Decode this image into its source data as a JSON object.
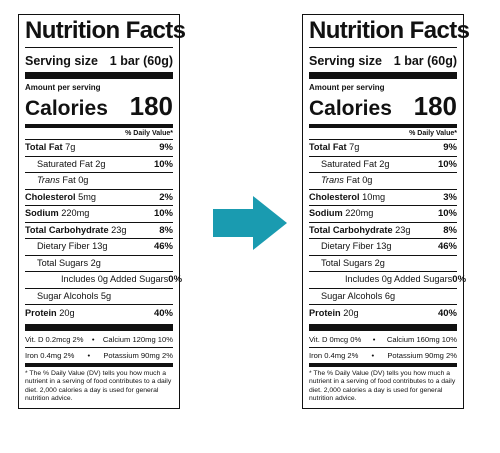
{
  "arrow_color": "#1a9bb0",
  "labels": [
    {
      "title": "Nutrition Facts",
      "serving_label": "Serving size",
      "serving_value": "1 bar (60g)",
      "amount_per_serving": "Amount per serving",
      "calories_label": "Calories",
      "calories_value": "180",
      "dv_header": "% Daily Value*",
      "total_fat": {
        "label": "Total Fat",
        "amount": "7g",
        "dv": "9%"
      },
      "saturated_fat": {
        "label": "Saturated Fat 2g",
        "dv": "10%"
      },
      "trans_fat": {
        "prefix": "Trans",
        "label": " Fat 0g"
      },
      "cholesterol": {
        "label": "Cholesterol",
        "amount": "5mg",
        "dv": "2%"
      },
      "sodium": {
        "label": "Sodium",
        "amount": "220mg",
        "dv": "10%"
      },
      "total_carb": {
        "label": "Total Carbohydrate",
        "amount": "23g",
        "dv": "8%"
      },
      "dietary_fiber": {
        "label": "Dietary Fiber 13g",
        "dv": "46%"
      },
      "total_sugars": {
        "label": "Total Sugars 2g"
      },
      "added_sugars": {
        "label": "Includes 0g Added Sugars",
        "dv": "0%"
      },
      "sugar_alcohols": {
        "label": "Sugar Alcohols 5g"
      },
      "protein": {
        "label": "Protein",
        "amount": "20g",
        "dv": "40%"
      },
      "vit_d": "Vit. D 0.2mcg 2%",
      "calcium": "Calcium 120mg 10%",
      "iron": "Iron 0.4mg 2%",
      "potassium": "Potassium 90mg 2%",
      "bullet": "•",
      "footnote": "* The % Daily Value (DV) tells you how much a nutrient in a serving of food contributes to a daily diet. 2,000 calories a day is used for general nutrition advice."
    },
    {
      "title": "Nutrition Facts",
      "serving_label": "Serving size",
      "serving_value": "1 bar (60g)",
      "amount_per_serving": "Amount per serving",
      "calories_label": "Calories",
      "calories_value": "180",
      "dv_header": "% Daily Value*",
      "total_fat": {
        "label": "Total Fat",
        "amount": "7g",
        "dv": "9%"
      },
      "saturated_fat": {
        "label": "Saturated Fat 2g",
        "dv": "10%"
      },
      "trans_fat": {
        "prefix": "Trans",
        "label": " Fat 0g"
      },
      "cholesterol": {
        "label": "Cholesterol",
        "amount": "10mg",
        "dv": "3%"
      },
      "sodium": {
        "label": "Sodium",
        "amount": "220mg",
        "dv": "10%"
      },
      "total_carb": {
        "label": "Total Carbohydrate",
        "amount": "23g",
        "dv": "8%"
      },
      "dietary_fiber": {
        "label": "Dietary Fiber 13g",
        "dv": "46%"
      },
      "total_sugars": {
        "label": "Total Sugars 2g"
      },
      "added_sugars": {
        "label": "Includes 0g Added Sugars",
        "dv": "0%"
      },
      "sugar_alcohols": {
        "label": "Sugar Alcohols 6g"
      },
      "protein": {
        "label": "Protein",
        "amount": "20g",
        "dv": "40%"
      },
      "vit_d": "Vit. D 0mcg 0%",
      "calcium": "Calcium 160mg 10%",
      "iron": "Iron 0.4mg 2%",
      "potassium": "Potassium 90mg 2%",
      "bullet": "•",
      "footnote": "* The % Daily Value (DV) tells you how much a nutrient in a serving of food contributes to a daily diet. 2,000 calories a day is used for general nutrition advice."
    }
  ]
}
